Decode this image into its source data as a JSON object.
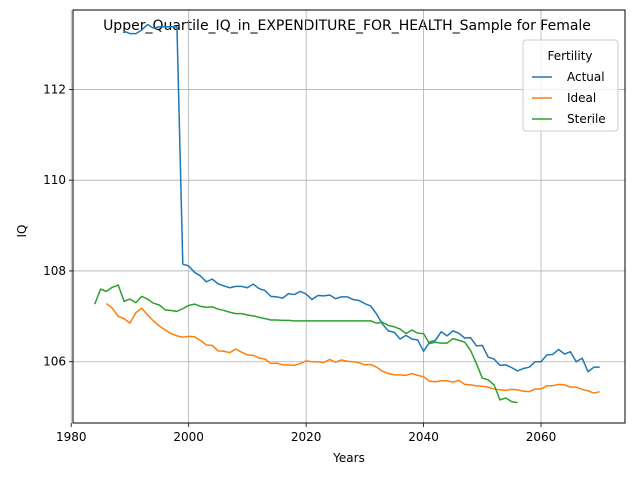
{
  "chart_data": {
    "type": "line",
    "title": "Upper_Quartile_IQ_in_EXPENDITURE_FOR_HEALTH_Sample for Female",
    "xlabel": "Years",
    "ylabel": "IQ",
    "xlim": [
      1980.3,
      2074.3
    ],
    "ylim": [
      104.65,
      113.75
    ],
    "x_ticks": [
      1980,
      2000,
      2020,
      2040,
      2060
    ],
    "x_tick_labels": [
      "1980",
      "2000",
      "2020",
      "2040",
      "2060"
    ],
    "y_ticks": [
      106,
      108,
      110,
      112
    ],
    "y_tick_labels": [
      "106",
      "108",
      "110",
      "112"
    ],
    "grid": true,
    "legend": {
      "title": "Fertility",
      "position": "top-right"
    },
    "series": [
      {
        "name": "Actual",
        "color": "#1f77b4",
        "x": [
          1989,
          1990,
          1991,
          1992,
          1993,
          1994,
          1995,
          1996,
          1997,
          1998,
          1999,
          2000,
          2001,
          2002,
          2003,
          2004,
          2005,
          2006,
          2007,
          2008,
          2009,
          2010,
          2011,
          2012,
          2013,
          2014,
          2015,
          2016,
          2017,
          2018,
          2019,
          2020,
          2021,
          2022,
          2023,
          2024,
          2025,
          2026,
          2027,
          2028,
          2029,
          2030,
          2031,
          2032,
          2033,
          2034,
          2035,
          2036,
          2037,
          2038,
          2039,
          2040,
          2041,
          2042,
          2043,
          2044,
          2045,
          2046,
          2047,
          2048,
          2049,
          2050,
          2051,
          2052,
          2053,
          2054,
          2055,
          2056,
          2057,
          2058,
          2059,
          2060,
          2061,
          2062,
          2063,
          2064,
          2065,
          2066,
          2067,
          2068,
          2069,
          2070
        ],
        "y": [
          113.28,
          113.23,
          113.23,
          113.31,
          113.43,
          113.35,
          113.38,
          113.38,
          113.38,
          113.38,
          108.15,
          108.11,
          107.97,
          107.89,
          107.76,
          107.82,
          107.72,
          107.67,
          107.63,
          107.66,
          107.66,
          107.63,
          107.71,
          107.61,
          107.57,
          107.44,
          107.43,
          107.4,
          107.5,
          107.48,
          107.55,
          107.49,
          107.37,
          107.46,
          107.45,
          107.47,
          107.39,
          107.43,
          107.43,
          107.37,
          107.35,
          107.28,
          107.23,
          107.05,
          106.83,
          106.68,
          106.65,
          106.5,
          106.58,
          106.5,
          106.48,
          106.23,
          106.43,
          106.47,
          106.66,
          106.57,
          106.68,
          106.63,
          106.52,
          106.53,
          106.35,
          106.36,
          106.1,
          106.06,
          105.92,
          105.93,
          105.87,
          105.8,
          105.85,
          105.88,
          106.0,
          106.0,
          106.15,
          106.16,
          106.27,
          106.17,
          106.22,
          106.0,
          106.08,
          105.78,
          105.88,
          105.88
        ]
      },
      {
        "name": "Ideal",
        "color": "#ff7f0e",
        "x": [
          1986,
          1987,
          1988,
          1989,
          1990,
          1991,
          1992,
          1993,
          1994,
          1995,
          1996,
          1997,
          1998,
          1999,
          2000,
          2001,
          2002,
          2003,
          2004,
          2005,
          2006,
          2007,
          2008,
          2009,
          2010,
          2011,
          2012,
          2013,
          2014,
          2015,
          2016,
          2017,
          2018,
          2019,
          2020,
          2021,
          2022,
          2023,
          2024,
          2025,
          2026,
          2027,
          2028,
          2029,
          2030,
          2031,
          2032,
          2033,
          2034,
          2035,
          2036,
          2037,
          2038,
          2039,
          2040,
          2041,
          2042,
          2043,
          2044,
          2045,
          2046,
          2047,
          2048,
          2049,
          2050,
          2051,
          2052,
          2053,
          2054,
          2055,
          2056,
          2057,
          2058,
          2059,
          2060,
          2061,
          2062,
          2063,
          2064,
          2065,
          2066,
          2067,
          2068,
          2069,
          2070
        ],
        "y": [
          107.28,
          107.18,
          107.0,
          106.95,
          106.85,
          107.08,
          107.18,
          107.03,
          106.9,
          106.79,
          106.7,
          106.62,
          106.57,
          106.54,
          106.56,
          106.55,
          106.47,
          106.37,
          106.36,
          106.24,
          106.23,
          106.2,
          106.28,
          106.21,
          106.15,
          106.14,
          106.08,
          106.06,
          105.96,
          105.97,
          105.93,
          105.93,
          105.92,
          105.96,
          106.02,
          106.0,
          106.0,
          105.98,
          106.05,
          105.99,
          106.04,
          106.01,
          106.0,
          105.98,
          105.93,
          105.94,
          105.88,
          105.79,
          105.74,
          105.71,
          105.71,
          105.7,
          105.74,
          105.7,
          105.67,
          105.57,
          105.56,
          105.58,
          105.58,
          105.55,
          105.59,
          105.5,
          105.49,
          105.47,
          105.46,
          105.44,
          105.4,
          105.38,
          105.37,
          105.39,
          105.38,
          105.35,
          105.34,
          105.4,
          105.4,
          105.47,
          105.47,
          105.5,
          105.49,
          105.44,
          105.44,
          105.39,
          105.36,
          105.31,
          105.34
        ]
      },
      {
        "name": "Sterile",
        "color": "#2ca02c",
        "x": [
          1984,
          1985,
          1986,
          1987,
          1988,
          1989,
          1990,
          1991,
          1992,
          1993,
          1994,
          1995,
          1996,
          1997,
          1998,
          1999,
          2000,
          2001,
          2002,
          2003,
          2004,
          2005,
          2006,
          2007,
          2008,
          2009,
          2010,
          2011,
          2012,
          2013,
          2014,
          2015,
          2016,
          2017,
          2018,
          2019,
          2020,
          2021,
          2022,
          2023,
          2024,
          2025,
          2026,
          2027,
          2028,
          2029,
          2030,
          2031,
          2032,
          2033,
          2034,
          2035,
          2036,
          2037,
          2038,
          2039,
          2040,
          2041,
          2042,
          2043,
          2044,
          2045,
          2046,
          2047,
          2048,
          2049,
          2050,
          2051,
          2052,
          2053,
          2054,
          2055,
          2056
        ],
        "y": [
          107.27,
          107.6,
          107.55,
          107.64,
          107.69,
          107.33,
          107.38,
          107.3,
          107.44,
          107.38,
          107.29,
          107.25,
          107.14,
          107.13,
          107.11,
          107.17,
          107.24,
          107.27,
          107.22,
          107.2,
          107.21,
          107.16,
          107.13,
          107.09,
          107.06,
          107.06,
          107.03,
          107.01,
          106.98,
          106.95,
          106.92,
          106.92,
          106.91,
          106.91,
          106.9,
          106.9,
          106.9,
          106.9,
          106.9,
          106.9,
          106.9,
          106.9,
          106.9,
          106.9,
          106.9,
          106.9,
          106.9,
          106.9,
          106.85,
          106.87,
          106.8,
          106.77,
          106.72,
          106.62,
          106.7,
          106.63,
          106.62,
          106.4,
          106.43,
          106.41,
          106.41,
          106.51,
          106.47,
          106.43,
          106.25,
          105.96,
          105.64,
          105.6,
          105.49,
          105.16,
          105.2,
          105.12,
          105.1
        ]
      }
    ]
  }
}
